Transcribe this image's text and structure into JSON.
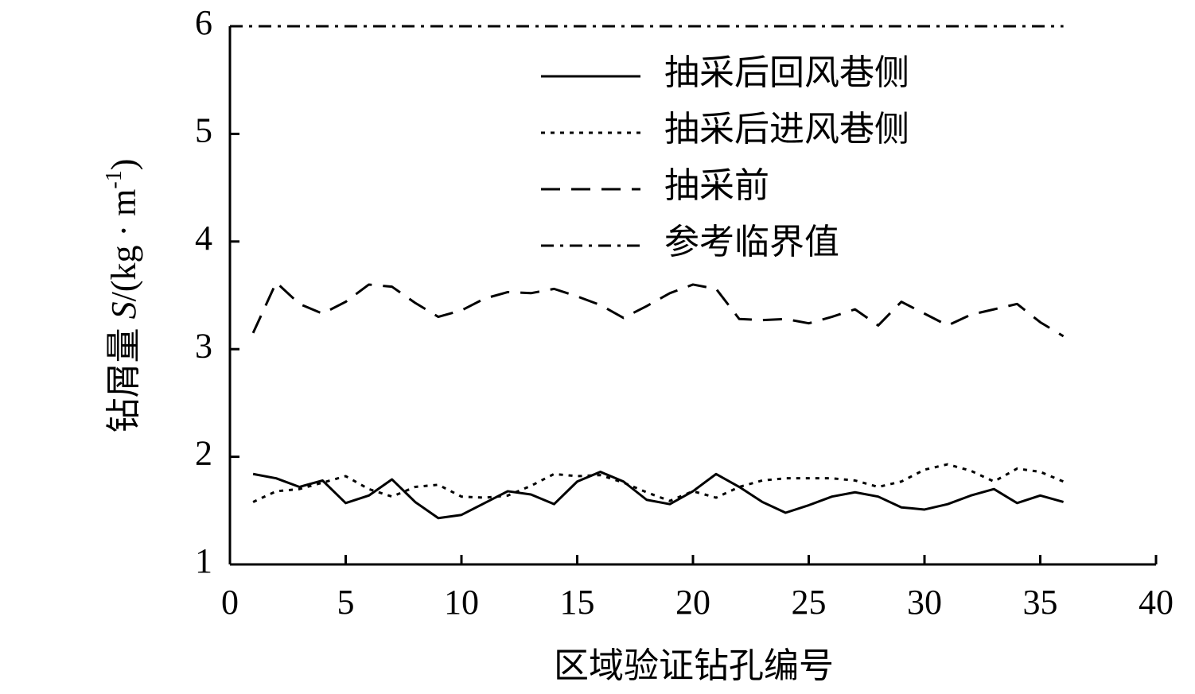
{
  "chart_data": {
    "type": "line",
    "xlabel": "区域验证钻孔编号",
    "ylabel": [
      "钻屑量 ",
      "S",
      "/(kg · m",
      "-1",
      ")"
    ],
    "xlim": [
      0,
      40
    ],
    "xticks": [
      0,
      5,
      10,
      15,
      20,
      25,
      30,
      35,
      40
    ],
    "ylim": [
      1,
      6
    ],
    "yticks": [
      1,
      2,
      3,
      4,
      5,
      6
    ],
    "grid": false,
    "legend": "upper right",
    "series": [
      {
        "name": "抽采后回风巷侧",
        "color": "#000000",
        "dash": "solid",
        "x": [
          1,
          2,
          3,
          4,
          5,
          6,
          7,
          8,
          9,
          10,
          11,
          12,
          13,
          14,
          15,
          16,
          17,
          18,
          19,
          20,
          21,
          22,
          23,
          24,
          25,
          26,
          27,
          28,
          29,
          30,
          31,
          32,
          33,
          34,
          35,
          36
        ],
        "values": [
          1.84,
          1.8,
          1.72,
          1.78,
          1.57,
          1.64,
          1.79,
          1.58,
          1.43,
          1.46,
          1.57,
          1.68,
          1.65,
          1.56,
          1.77,
          1.86,
          1.77,
          1.6,
          1.56,
          1.68,
          1.84,
          1.72,
          1.58,
          1.48,
          1.55,
          1.63,
          1.67,
          1.63,
          1.53,
          1.51,
          1.56,
          1.64,
          1.7,
          1.57,
          1.64,
          1.58
        ]
      },
      {
        "name": "抽采后进风巷侧",
        "color": "#000000",
        "dash": "dotted",
        "x": [
          1,
          2,
          3,
          4,
          5,
          6,
          7,
          8,
          9,
          10,
          11,
          12,
          13,
          14,
          15,
          16,
          17,
          18,
          19,
          20,
          21,
          22,
          23,
          24,
          25,
          26,
          27,
          28,
          29,
          30,
          31,
          32,
          33,
          34,
          35,
          36
        ],
        "values": [
          1.58,
          1.68,
          1.7,
          1.76,
          1.82,
          1.7,
          1.63,
          1.72,
          1.74,
          1.63,
          1.62,
          1.64,
          1.73,
          1.84,
          1.82,
          1.83,
          1.76,
          1.67,
          1.59,
          1.68,
          1.62,
          1.72,
          1.78,
          1.8,
          1.8,
          1.8,
          1.78,
          1.72,
          1.77,
          1.88,
          1.93,
          1.87,
          1.77,
          1.89,
          1.86,
          1.77
        ]
      },
      {
        "name": "抽采前",
        "color": "#000000",
        "dash": "dashed",
        "x": [
          1,
          2,
          3,
          4,
          5,
          6,
          7,
          8,
          9,
          10,
          11,
          12,
          13,
          14,
          15,
          16,
          17,
          18,
          19,
          20,
          21,
          22,
          23,
          24,
          25,
          26,
          27,
          28,
          29,
          30,
          31,
          32,
          33,
          34,
          35,
          36
        ],
        "values": [
          3.15,
          3.62,
          3.42,
          3.33,
          3.44,
          3.6,
          3.58,
          3.43,
          3.3,
          3.36,
          3.47,
          3.53,
          3.52,
          3.56,
          3.49,
          3.41,
          3.29,
          3.4,
          3.52,
          3.6,
          3.56,
          3.28,
          3.27,
          3.28,
          3.24,
          3.3,
          3.37,
          3.22,
          3.44,
          3.33,
          3.22,
          3.32,
          3.37,
          3.42,
          3.25,
          3.12
        ]
      },
      {
        "name": "参考临界值",
        "color": "#000000",
        "dash": "dashdot",
        "x": [
          0,
          36
        ],
        "values": [
          6,
          6
        ]
      }
    ]
  }
}
